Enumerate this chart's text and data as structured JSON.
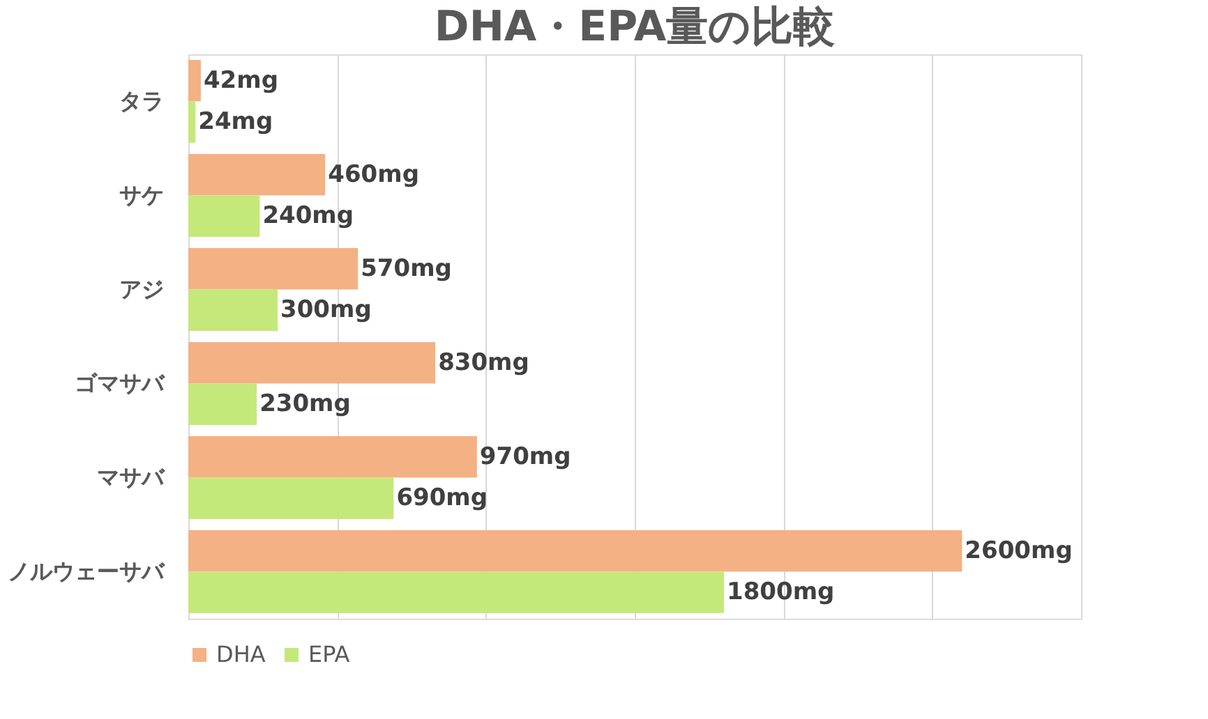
{
  "chart_data": {
    "type": "bar",
    "orientation": "horizontal",
    "title": "DHA・EPA量の比較",
    "categories": [
      "タラ",
      "サケ",
      "アジ",
      "ゴマサバ",
      "マサバ",
      "ノルウェーサバ"
    ],
    "series": [
      {
        "name": "DHA",
        "color": "#f4b183",
        "values": [
          42,
          460,
          570,
          830,
          970,
          2600
        ],
        "value_labels": [
          "42mg",
          "460mg",
          "570mg",
          "830mg",
          "970mg",
          "2600mg"
        ]
      },
      {
        "name": "EPA",
        "color": "#c5e87a",
        "values": [
          24,
          240,
          300,
          230,
          690,
          1800
        ],
        "value_labels": [
          "24mg",
          "240mg",
          "300mg",
          "230mg",
          "690mg",
          "1800mg"
        ]
      }
    ],
    "xlim": [
      0,
      3000
    ],
    "xticks": [
      {
        "value": 0,
        "label": null
      },
      {
        "value": 500,
        "label": null
      },
      {
        "value": 1000,
        "label": null
      },
      {
        "value": 1500,
        "label": null
      },
      {
        "value": 2000,
        "label": null
      },
      {
        "value": 2500,
        "label": null
      },
      {
        "value": 3000,
        "label": null
      }
    ],
    "grid": "x",
    "legend": "bottom",
    "tick_labels": "y"
  }
}
